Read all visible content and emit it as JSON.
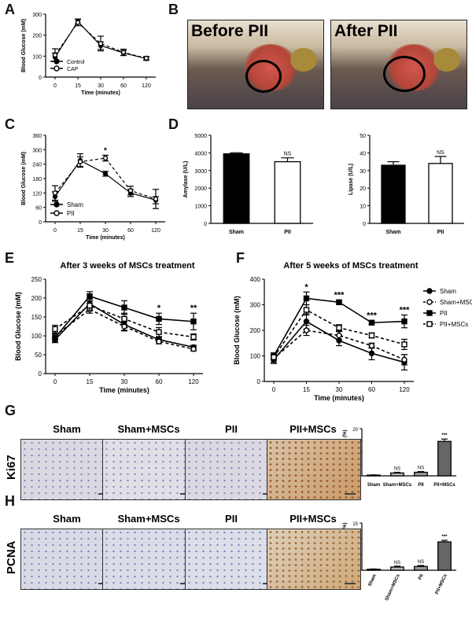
{
  "panels": [
    "A",
    "B",
    "C",
    "D",
    "E",
    "F",
    "G",
    "H"
  ],
  "panel_b": {
    "before_label": "Before PII",
    "after_label": "After PII"
  },
  "panel_e": {
    "title": "After 3 weeks of MSCs treatment"
  },
  "panel_f": {
    "title": "After 5 weeks of MSCs treatment"
  },
  "histology": {
    "columns": [
      "Sham",
      "Sham+MSCs",
      "PII",
      "PII+MSCs"
    ],
    "row_g": "Ki67",
    "row_h": "PCNA"
  },
  "chart_data": [
    {
      "id": "A",
      "type": "line",
      "x": [
        "0",
        "15",
        "30",
        "60",
        "120"
      ],
      "xlabel": "Time (minutes)",
      "ylabel": "Blood Glucose (mM)",
      "ylim": [
        0,
        300
      ],
      "yticks": [
        0,
        100,
        200,
        300
      ],
      "series": [
        {
          "name": "Control",
          "marker": "filled",
          "values": [
            95,
            265,
            150,
            115,
            88
          ],
          "errors": [
            20,
            12,
            18,
            12,
            8
          ]
        },
        {
          "name": "CAP",
          "marker": "open",
          "values": [
            105,
            260,
            160,
            118,
            90
          ],
          "errors": [
            30,
            15,
            35,
            15,
            8
          ]
        }
      ],
      "legend": "bottom-left"
    },
    {
      "id": "C",
      "type": "line",
      "x": [
        "0",
        "15",
        "30",
        "60",
        "120"
      ],
      "xlabel": "Time (minutes)",
      "ylabel": "Blood Glucose (mM)",
      "ylim": [
        0,
        360
      ],
      "yticks": [
        0,
        60,
        120,
        180,
        240,
        300,
        360
      ],
      "series": [
        {
          "name": "Sham",
          "marker": "filled",
          "values": [
            105,
            255,
            200,
            120,
            90
          ],
          "errors": [
            20,
            28,
            10,
            15,
            15
          ]
        },
        {
          "name": "PII",
          "marker": "open",
          "values": [
            120,
            250,
            265,
            130,
            95
          ],
          "errors": [
            30,
            20,
            12,
            18,
            40
          ]
        }
      ],
      "annotations": [
        {
          "x": "30",
          "text": "*"
        }
      ],
      "legend": "bottom-left"
    },
    {
      "id": "D1",
      "type": "bar",
      "categories": [
        "Sham",
        "PII"
      ],
      "ylabel": "Amylase (U/L)",
      "ylim": [
        0,
        5000
      ],
      "yticks": [
        0,
        1000,
        2000,
        3000,
        4000,
        5000
      ],
      "values": [
        3950,
        3500
      ],
      "errors": [
        60,
        220
      ],
      "fills": [
        "#000000",
        "#ffffff"
      ],
      "annotations": [
        {
          "category": "PII",
          "text": "NS"
        }
      ]
    },
    {
      "id": "D2",
      "type": "bar",
      "categories": [
        "Sham",
        "PII"
      ],
      "ylabel": "Lipase (U/L)",
      "ylim": [
        0,
        50
      ],
      "yticks": [
        0,
        10,
        20,
        30,
        40,
        50
      ],
      "values": [
        33,
        34
      ],
      "errors": [
        2,
        4
      ],
      "fills": [
        "#000000",
        "#ffffff"
      ],
      "annotations": [
        {
          "category": "PII",
          "text": "NS"
        }
      ]
    },
    {
      "id": "E",
      "type": "line",
      "x": [
        "0",
        "15",
        "30",
        "60",
        "120"
      ],
      "xlabel": "Time (minutes)",
      "ylabel": "Blood Glucose (mM)",
      "ylim": [
        0,
        250
      ],
      "yticks": [
        0,
        50,
        100,
        150,
        200,
        250
      ],
      "series": [
        {
          "name": "Sham",
          "marker": "filled-circle",
          "dash": "solid",
          "values": [
            90,
            185,
            130,
            90,
            70
          ],
          "errors": [
            8,
            12,
            15,
            6,
            5
          ]
        },
        {
          "name": "Sham+MSCs",
          "marker": "open-circle",
          "dash": "dashed",
          "values": [
            100,
            170,
            125,
            85,
            65
          ],
          "errors": [
            8,
            10,
            12,
            6,
            5
          ]
        },
        {
          "name": "PII",
          "marker": "filled-square",
          "dash": "solid",
          "values": [
            95,
            205,
            175,
            145,
            138
          ],
          "errors": [
            10,
            12,
            18,
            15,
            22
          ]
        },
        {
          "name": "PII+MSCs",
          "marker": "open-square",
          "dash": "dashed",
          "values": [
            118,
            180,
            145,
            110,
            97
          ],
          "errors": [
            10,
            12,
            15,
            12,
            8
          ]
        }
      ],
      "annotations": [
        {
          "x": "60",
          "text": "*"
        },
        {
          "x": "120",
          "text": "**"
        }
      ]
    },
    {
      "id": "F",
      "type": "line",
      "x": [
        "0",
        "15",
        "30",
        "60",
        "120"
      ],
      "xlabel": "Time (minutes)",
      "ylabel": "Blood Glucose (mM)",
      "ylim": [
        0,
        400
      ],
      "yticks": [
        0,
        100,
        200,
        300,
        400
      ],
      "series": [
        {
          "name": "Sham",
          "marker": "filled-circle",
          "dash": "solid",
          "values": [
            85,
            235,
            160,
            110,
            75
          ],
          "errors": [
            15,
            30,
            20,
            25,
            30
          ]
        },
        {
          "name": "Sham+MSCs",
          "marker": "open-circle",
          "dash": "dashed",
          "values": [
            90,
            200,
            180,
            140,
            85
          ],
          "errors": [
            15,
            20,
            15,
            10,
            20
          ]
        },
        {
          "name": "PII",
          "marker": "filled-square",
          "dash": "solid",
          "values": [
            100,
            325,
            310,
            230,
            235
          ],
          "errors": [
            12,
            25,
            8,
            8,
            25
          ]
        },
        {
          "name": "PII+MSCs",
          "marker": "open-square",
          "dash": "dashed",
          "values": [
            95,
            280,
            210,
            180,
            145
          ],
          "errors": [
            12,
            20,
            12,
            10,
            20
          ]
        }
      ],
      "annotations": [
        {
          "x": "15",
          "text": "*"
        },
        {
          "x": "30",
          "text": "***"
        },
        {
          "x": "60",
          "text": "***"
        },
        {
          "x": "120",
          "text": "***"
        }
      ],
      "legend": "right"
    },
    {
      "id": "G",
      "type": "bar",
      "categories": [
        "Sham",
        "Sham+MSCs",
        "PII",
        "PII+MSCs"
      ],
      "ylabel": "Ki67 expression (%)",
      "ylim": [
        0,
        20
      ],
      "yticks": [
        0,
        5,
        10,
        15,
        20
      ],
      "values": [
        0.3,
        1.2,
        1.5,
        14.6
      ],
      "errors": [
        0.1,
        0.3,
        0.3,
        1.0
      ],
      "fills": [
        "#ffffff",
        "#b8b8b8",
        "#9a9a9a",
        "#666666"
      ],
      "annotations": [
        {
          "category": "Sham+MSCs",
          "text": "NS"
        },
        {
          "category": "PII",
          "text": "NS"
        },
        {
          "category": "PII+MSCs",
          "text": "***"
        }
      ]
    },
    {
      "id": "H",
      "type": "bar",
      "categories": [
        "Sham",
        "Sham+MSCs",
        "PII",
        "PII+MSCs"
      ],
      "ylabel": "PCNA expression (%)",
      "ylim": [
        0,
        15
      ],
      "yticks": [
        0,
        5,
        10,
        15
      ],
      "values": [
        0.3,
        1.0,
        1.2,
        9.0
      ],
      "errors": [
        0.1,
        0.3,
        0.3,
        0.5
      ],
      "fills": [
        "#ffffff",
        "#b8b8b8",
        "#9a9a9a",
        "#666666"
      ],
      "annotations": [
        {
          "category": "Sham+MSCs",
          "text": "NS"
        },
        {
          "category": "PII",
          "text": "NS"
        },
        {
          "category": "PII+MSCs",
          "text": "***"
        }
      ]
    }
  ]
}
